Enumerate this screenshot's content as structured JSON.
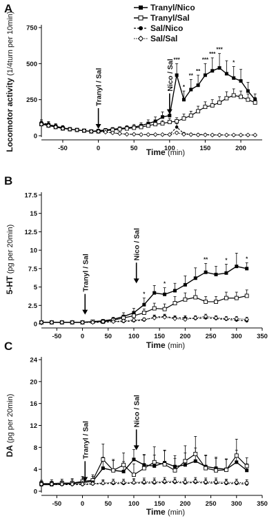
{
  "legend": {
    "entries": [
      {
        "label": "Tranyl/Nico",
        "marker": "filled-square",
        "line": "solid"
      },
      {
        "label": "Tranyl/Sal",
        "marker": "open-square",
        "line": "solid"
      },
      {
        "label": "Sal/Nico",
        "marker": "filled-circle",
        "line": "dashed"
      },
      {
        "label": "Sal/Sal",
        "marker": "open-diamond",
        "line": "dotted"
      }
    ]
  },
  "chart_data": [
    {
      "panel": "A",
      "type": "line",
      "ylabel": "Locomotor activity",
      "ylabel_unit": "(1/4turn per 10min)",
      "xlabel": "Time",
      "xlabel_unit": "(min)",
      "xlim": [
        -80,
        230
      ],
      "ylim": [
        0,
        750
      ],
      "xticks": [
        -50,
        0,
        50,
        100,
        150,
        200
      ],
      "yticks": [
        0,
        250,
        500,
        750
      ],
      "annotations": [
        {
          "text": "Tranyl / Sal",
          "x": 0
        },
        {
          "text": "Nico / Sal",
          "x": 100
        }
      ],
      "significance": [
        {
          "x": 110,
          "text": "***"
        },
        {
          "x": 120,
          "text": "*"
        },
        {
          "x": 130,
          "text": "**"
        },
        {
          "x": 140,
          "text": "**"
        },
        {
          "x": 150,
          "text": "***"
        },
        {
          "x": 160,
          "text": "***"
        },
        {
          "x": 170,
          "text": "***"
        },
        {
          "x": 190,
          "text": "*"
        }
      ],
      "series": [
        {
          "name": "Tranyl/Nico",
          "x": [
            -80,
            -70,
            -60,
            -50,
            -40,
            -30,
            -20,
            -10,
            0,
            10,
            20,
            30,
            40,
            50,
            60,
            70,
            80,
            90,
            100,
            110,
            120,
            130,
            140,
            150,
            160,
            170,
            180,
            190,
            200,
            210,
            220
          ],
          "y": [
            85,
            75,
            65,
            55,
            45,
            40,
            35,
            30,
            35,
            40,
            45,
            50,
            55,
            60,
            70,
            85,
            100,
            130,
            140,
            420,
            250,
            320,
            350,
            420,
            450,
            470,
            430,
            400,
            380,
            310,
            250
          ],
          "err": [
            25,
            20,
            18,
            15,
            12,
            10,
            10,
            8,
            10,
            10,
            12,
            12,
            15,
            18,
            20,
            25,
            30,
            35,
            40,
            80,
            60,
            70,
            70,
            80,
            90,
            100,
            90,
            80,
            80,
            60,
            40
          ]
        },
        {
          "name": "Tranyl/Sal",
          "x": [
            -80,
            -70,
            -60,
            -50,
            -40,
            -30,
            -20,
            -10,
            0,
            10,
            20,
            30,
            40,
            50,
            60,
            70,
            80,
            90,
            100,
            110,
            120,
            130,
            140,
            150,
            160,
            170,
            180,
            190,
            200,
            210,
            220
          ],
          "y": [
            80,
            70,
            60,
            50,
            45,
            40,
            35,
            30,
            30,
            35,
            40,
            45,
            50,
            55,
            60,
            70,
            80,
            85,
            95,
            100,
            120,
            140,
            170,
            200,
            210,
            230,
            260,
            280,
            270,
            250,
            230
          ],
          "err": [
            20,
            18,
            15,
            12,
            10,
            10,
            8,
            8,
            8,
            10,
            10,
            12,
            12,
            15,
            15,
            18,
            20,
            20,
            25,
            25,
            30,
            30,
            35,
            35,
            40,
            40,
            45,
            45,
            40,
            40,
            35
          ]
        },
        {
          "name": "Sal/Nico",
          "x": [
            -80,
            -70,
            -60,
            -50,
            -40,
            -30,
            -20,
            -10,
            0,
            10,
            20,
            30,
            40,
            50,
            60,
            70,
            80,
            90,
            100,
            110,
            120,
            130,
            140,
            150,
            160,
            170,
            180,
            190,
            200,
            210,
            220
          ],
          "y": [
            90,
            80,
            65,
            55,
            45,
            40,
            35,
            30,
            30,
            25,
            20,
            15,
            10,
            10,
            8,
            8,
            8,
            8,
            8,
            60,
            15,
            10,
            8,
            8,
            6,
            6,
            5,
            5,
            5,
            5,
            5
          ],
          "err": [
            20,
            18,
            15,
            12,
            10,
            10,
            8,
            8,
            8,
            6,
            6,
            5,
            5,
            5,
            4,
            4,
            4,
            4,
            4,
            25,
            6,
            5,
            4,
            4,
            3,
            3,
            3,
            3,
            3,
            3,
            3
          ]
        },
        {
          "name": "Sal/Sal",
          "x": [
            -80,
            -70,
            -60,
            -50,
            -40,
            -30,
            -20,
            -10,
            0,
            10,
            20,
            30,
            40,
            50,
            60,
            70,
            80,
            90,
            100,
            110,
            120,
            130,
            140,
            150,
            160,
            170,
            180,
            190,
            200,
            210,
            220
          ],
          "y": [
            80,
            70,
            60,
            50,
            45,
            40,
            35,
            30,
            30,
            25,
            20,
            15,
            10,
            10,
            8,
            8,
            8,
            8,
            8,
            20,
            10,
            8,
            6,
            6,
            5,
            5,
            5,
            5,
            5,
            5,
            5
          ],
          "err": [
            18,
            16,
            14,
            12,
            10,
            9,
            8,
            7,
            7,
            6,
            5,
            5,
            4,
            4,
            4,
            3,
            3,
            3,
            3,
            8,
            4,
            3,
            3,
            3,
            3,
            3,
            3,
            3,
            3,
            3,
            3
          ]
        }
      ]
    },
    {
      "panel": "B",
      "type": "line",
      "ylabel": "5-HT",
      "ylabel_unit": "(pg per 20min)",
      "xlabel": "Time",
      "xlabel_unit": "(min)",
      "xlim": [
        -80,
        350
      ],
      "ylim": [
        0,
        17.5
      ],
      "xticks": [
        -50,
        0,
        50,
        100,
        150,
        200,
        250,
        300,
        350
      ],
      "yticks": [
        0,
        2.5,
        5,
        7.5,
        10,
        12.5,
        15,
        17.5
      ],
      "annotations": [
        {
          "text": "Tranyl / Sal",
          "x": 5
        },
        {
          "text": "Nico / Sal",
          "x": 105
        }
      ],
      "significance": [
        {
          "x": 120,
          "text": "*"
        },
        {
          "x": 160,
          "text": "*"
        },
        {
          "x": 240,
          "text": "**"
        },
        {
          "x": 280,
          "text": "*"
        },
        {
          "x": 320,
          "text": "*"
        }
      ],
      "series": [
        {
          "name": "Tranyl/Nico",
          "x": [
            -80,
            -60,
            -40,
            -20,
            0,
            20,
            40,
            60,
            80,
            100,
            120,
            140,
            160,
            180,
            200,
            220,
            240,
            260,
            280,
            300,
            320
          ],
          "y": [
            0.2,
            0.2,
            0.2,
            0.2,
            0.2,
            0.3,
            0.4,
            0.6,
            1.0,
            1.5,
            2.6,
            4.2,
            4.0,
            4.5,
            5.3,
            6.2,
            7.0,
            6.7,
            6.9,
            7.8,
            7.5
          ],
          "err": [
            0.1,
            0.1,
            0.1,
            0.1,
            0.1,
            0.2,
            0.2,
            0.3,
            0.5,
            0.6,
            0.9,
            1.0,
            0.9,
            1.0,
            1.2,
            1.4,
            1.2,
            1.1,
            1.2,
            1.8,
            0.8
          ]
        },
        {
          "name": "Tranyl/Sal",
          "x": [
            -80,
            -60,
            -40,
            -20,
            0,
            20,
            40,
            60,
            80,
            100,
            120,
            140,
            160,
            180,
            200,
            220,
            240,
            260,
            280,
            300,
            320
          ],
          "y": [
            0.2,
            0.2,
            0.2,
            0.2,
            0.2,
            0.3,
            0.3,
            0.5,
            0.8,
            1.1,
            1.5,
            2.1,
            2.0,
            2.8,
            3.3,
            3.6,
            3.0,
            3.0,
            3.5,
            3.5,
            3.8
          ],
          "err": [
            0.1,
            0.1,
            0.1,
            0.1,
            0.1,
            0.1,
            0.2,
            0.2,
            0.3,
            0.4,
            0.5,
            0.7,
            0.7,
            0.9,
            0.9,
            1.0,
            0.7,
            0.7,
            0.8,
            0.8,
            0.8
          ]
        },
        {
          "name": "Sal/Nico",
          "x": [
            -80,
            -60,
            -40,
            -20,
            0,
            20,
            40,
            60,
            80,
            100,
            120,
            140,
            160,
            180,
            200,
            220,
            240,
            260,
            280,
            300,
            320
          ],
          "y": [
            0.2,
            0.2,
            0.2,
            0.2,
            0.2,
            0.2,
            0.2,
            0.3,
            0.3,
            0.4,
            0.5,
            0.9,
            1.0,
            0.8,
            0.8,
            0.7,
            0.8,
            0.7,
            0.6,
            0.5,
            0.4
          ],
          "err": [
            0.1,
            0.1,
            0.1,
            0.1,
            0.1,
            0.1,
            0.1,
            0.1,
            0.1,
            0.2,
            0.2,
            0.3,
            0.3,
            0.3,
            0.3,
            0.3,
            0.3,
            0.3,
            0.2,
            0.2,
            0.2
          ]
        },
        {
          "name": "Sal/Sal",
          "x": [
            -80,
            -60,
            -40,
            -20,
            0,
            20,
            40,
            60,
            80,
            100,
            120,
            140,
            160,
            180,
            200,
            220,
            240,
            260,
            280,
            300,
            320
          ],
          "y": [
            0.2,
            0.2,
            0.2,
            0.2,
            0.2,
            0.2,
            0.3,
            0.3,
            0.4,
            0.5,
            0.6,
            0.8,
            0.9,
            0.7,
            0.6,
            0.8,
            1.0,
            0.8,
            0.7,
            0.7,
            0.6
          ],
          "err": [
            0.1,
            0.1,
            0.1,
            0.1,
            0.1,
            0.1,
            0.1,
            0.1,
            0.2,
            0.2,
            0.2,
            0.3,
            0.3,
            0.3,
            0.3,
            0.3,
            0.3,
            0.3,
            0.3,
            0.3,
            0.3
          ]
        }
      ]
    },
    {
      "panel": "C",
      "type": "line",
      "ylabel": "DA",
      "ylabel_unit": "(pg per 20min)",
      "xlabel": "Time",
      "xlabel_unit": "(min)",
      "xlim": [
        -80,
        350
      ],
      "ylim": [
        0,
        24
      ],
      "xticks": [
        -50,
        0,
        50,
        100,
        150,
        200,
        250,
        300,
        350
      ],
      "yticks": [
        0,
        4,
        8,
        12,
        16,
        20,
        24
      ],
      "annotations": [
        {
          "text": "Tranyl / Sal",
          "x": 5
        },
        {
          "text": "Nico / Sal",
          "x": 105
        }
      ],
      "significance": [],
      "series": [
        {
          "name": "Tranyl/Nico",
          "x": [
            -80,
            -60,
            -40,
            -20,
            0,
            20,
            40,
            60,
            80,
            100,
            120,
            140,
            160,
            180,
            200,
            220,
            240,
            260,
            280,
            300,
            320
          ],
          "y": [
            1.2,
            1.2,
            1.3,
            1.4,
            1.6,
            1.8,
            4.2,
            3.8,
            3.6,
            5.8,
            4.8,
            4.6,
            5.2,
            4.5,
            4.8,
            5.5,
            4.5,
            4.2,
            4.0,
            5.3,
            3.8
          ],
          "err": [
            0.6,
            0.6,
            0.6,
            0.7,
            0.8,
            0.9,
            2.0,
            1.8,
            1.8,
            1.8,
            1.9,
            2.0,
            2.2,
            2.0,
            2.2,
            2.4,
            2.0,
            2.0,
            1.8,
            2.2,
            1.2
          ]
        },
        {
          "name": "Tranyl/Sal",
          "x": [
            -80,
            -60,
            -40,
            -20,
            0,
            20,
            40,
            60,
            80,
            100,
            120,
            140,
            160,
            180,
            200,
            220,
            240,
            260,
            280,
            300,
            320
          ],
          "y": [
            1.4,
            1.4,
            1.5,
            1.5,
            1.8,
            2.0,
            5.8,
            3.8,
            4.8,
            3.0,
            4.2,
            5.3,
            4.9,
            3.8,
            5.5,
            6.8,
            4.2,
            3.8,
            3.9,
            6.5,
            4.6
          ],
          "err": [
            0.6,
            0.7,
            0.7,
            0.8,
            0.9,
            1.0,
            2.8,
            2.0,
            2.2,
            2.0,
            2.4,
            2.8,
            2.6,
            2.2,
            2.8,
            3.2,
            2.4,
            2.2,
            2.0,
            3.0,
            1.5
          ]
        },
        {
          "name": "Sal/Nico",
          "x": [
            -80,
            -60,
            -40,
            -20,
            0,
            20,
            40,
            60,
            80,
            100,
            120,
            140,
            160,
            180,
            200,
            220,
            240,
            260,
            280,
            300,
            320
          ],
          "y": [
            1.2,
            1.2,
            1.2,
            1.2,
            1.2,
            1.3,
            1.4,
            1.4,
            1.4,
            1.5,
            1.5,
            1.5,
            1.6,
            1.6,
            1.5,
            1.6,
            1.5,
            1.5,
            1.4,
            1.4,
            1.3
          ],
          "err": [
            0.4,
            0.4,
            0.4,
            0.4,
            0.4,
            0.5,
            0.5,
            0.5,
            0.5,
            0.6,
            0.6,
            0.6,
            0.6,
            0.6,
            0.6,
            0.6,
            0.6,
            0.6,
            0.6,
            0.5,
            0.5
          ]
        },
        {
          "name": "Sal/Sal",
          "x": [
            -80,
            -60,
            -40,
            -20,
            0,
            20,
            40,
            60,
            80,
            100,
            120,
            140,
            160,
            180,
            200,
            220,
            240,
            260,
            280,
            300,
            320
          ],
          "y": [
            1.3,
            1.3,
            1.3,
            1.3,
            1.3,
            1.4,
            1.5,
            1.6,
            1.6,
            1.6,
            1.7,
            1.7,
            1.8,
            1.8,
            1.7,
            1.8,
            1.7,
            1.7,
            1.6,
            1.6,
            1.5
          ],
          "err": [
            0.5,
            0.5,
            0.5,
            0.5,
            0.5,
            0.5,
            0.6,
            0.6,
            0.6,
            0.7,
            0.7,
            0.7,
            0.7,
            0.7,
            0.7,
            0.7,
            0.7,
            0.7,
            0.6,
            0.6,
            0.6
          ]
        }
      ]
    }
  ]
}
